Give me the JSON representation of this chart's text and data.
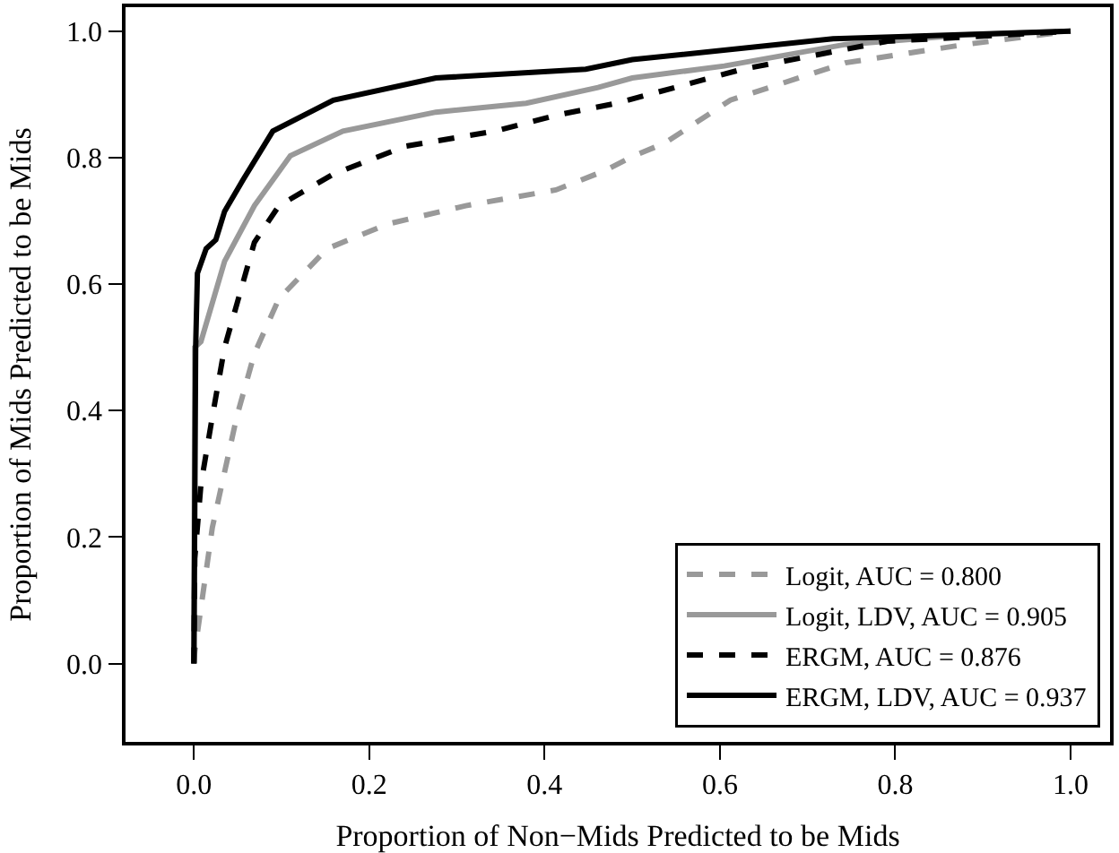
{
  "chart_data": {
    "type": "line",
    "xlabel": "Proportion of Non−Mids Predicted to be Mids",
    "ylabel": "Proportion of Mids Predicted to be Mids",
    "xlim": [
      -0.078,
      1.045
    ],
    "ylim": [
      -0.124,
      1.038
    ],
    "xticks": [
      {
        "value": 0,
        "label": "0.0"
      },
      {
        "value": 0.2,
        "label": "0.2"
      },
      {
        "value": 0.4,
        "label": "0.4"
      },
      {
        "value": 0.6,
        "label": "0.6"
      },
      {
        "value": 0.8,
        "label": "0.8"
      },
      {
        "value": 1,
        "label": "1.0"
      }
    ],
    "yticks": [
      {
        "value": 0,
        "label": "0.0"
      },
      {
        "value": 0.2,
        "label": "0.2"
      },
      {
        "value": 0.4,
        "label": "0.4"
      },
      {
        "value": 0.6,
        "label": "0.6"
      },
      {
        "value": 0.8,
        "label": "0.8"
      },
      {
        "value": 1,
        "label": "1.0"
      }
    ],
    "legend": "bottom right",
    "marker": "none",
    "series": [
      {
        "name": "Logit, AUC = 0.800",
        "color": "#999999",
        "line_style": "dashed",
        "x": [
          0,
          0.001,
          0.021,
          0.049,
          0.069,
          0.097,
          0.152,
          0.221,
          0.31,
          0.413,
          0.468,
          0.502,
          0.537,
          0.612,
          0.743,
          0.88,
          1.0
        ],
        "values": [
          0,
          0.019,
          0.215,
          0.391,
          0.49,
          0.577,
          0.656,
          0.695,
          0.724,
          0.749,
          0.779,
          0.803,
          0.823,
          0.891,
          0.95,
          0.979,
          1.0
        ]
      },
      {
        "name": "Logit, LDV, AUC = 0.905",
        "color": "#999999",
        "line_style": "solid",
        "x": [
          0,
          0.001,
          0.008,
          0.035,
          0.069,
          0.11,
          0.17,
          0.276,
          0.379,
          0.461,
          0.5,
          0.605,
          0.743,
          0.88,
          1.0
        ],
        "values": [
          0,
          0.5,
          0.509,
          0.636,
          0.724,
          0.803,
          0.842,
          0.872,
          0.886,
          0.911,
          0.926,
          0.945,
          0.979,
          0.994,
          1.0
        ]
      },
      {
        "name": "ERGM, AUC = 0.876",
        "color": "#000000",
        "line_style": "dashed",
        "x": [
          0,
          0.001,
          0.008,
          0.021,
          0.035,
          0.069,
          0.097,
          0.159,
          0.241,
          0.344,
          0.413,
          0.482,
          0.626,
          0.791,
          1.0
        ],
        "values": [
          0,
          0.166,
          0.283,
          0.39,
          0.5,
          0.666,
          0.724,
          0.774,
          0.818,
          0.842,
          0.867,
          0.886,
          0.94,
          0.984,
          1.0
        ]
      },
      {
        "name": "ERGM, LDV, AUC = 0.937",
        "color": "#000000",
        "line_style": "solid",
        "x": [
          0,
          0.002,
          0.004,
          0.014,
          0.025,
          0.035,
          0.056,
          0.09,
          0.159,
          0.276,
          0.447,
          0.5,
          0.729,
          1.0
        ],
        "values": [
          0,
          0.5,
          0.617,
          0.656,
          0.67,
          0.715,
          0.765,
          0.842,
          0.891,
          0.926,
          0.94,
          0.955,
          0.988,
          1.0
        ]
      }
    ]
  }
}
